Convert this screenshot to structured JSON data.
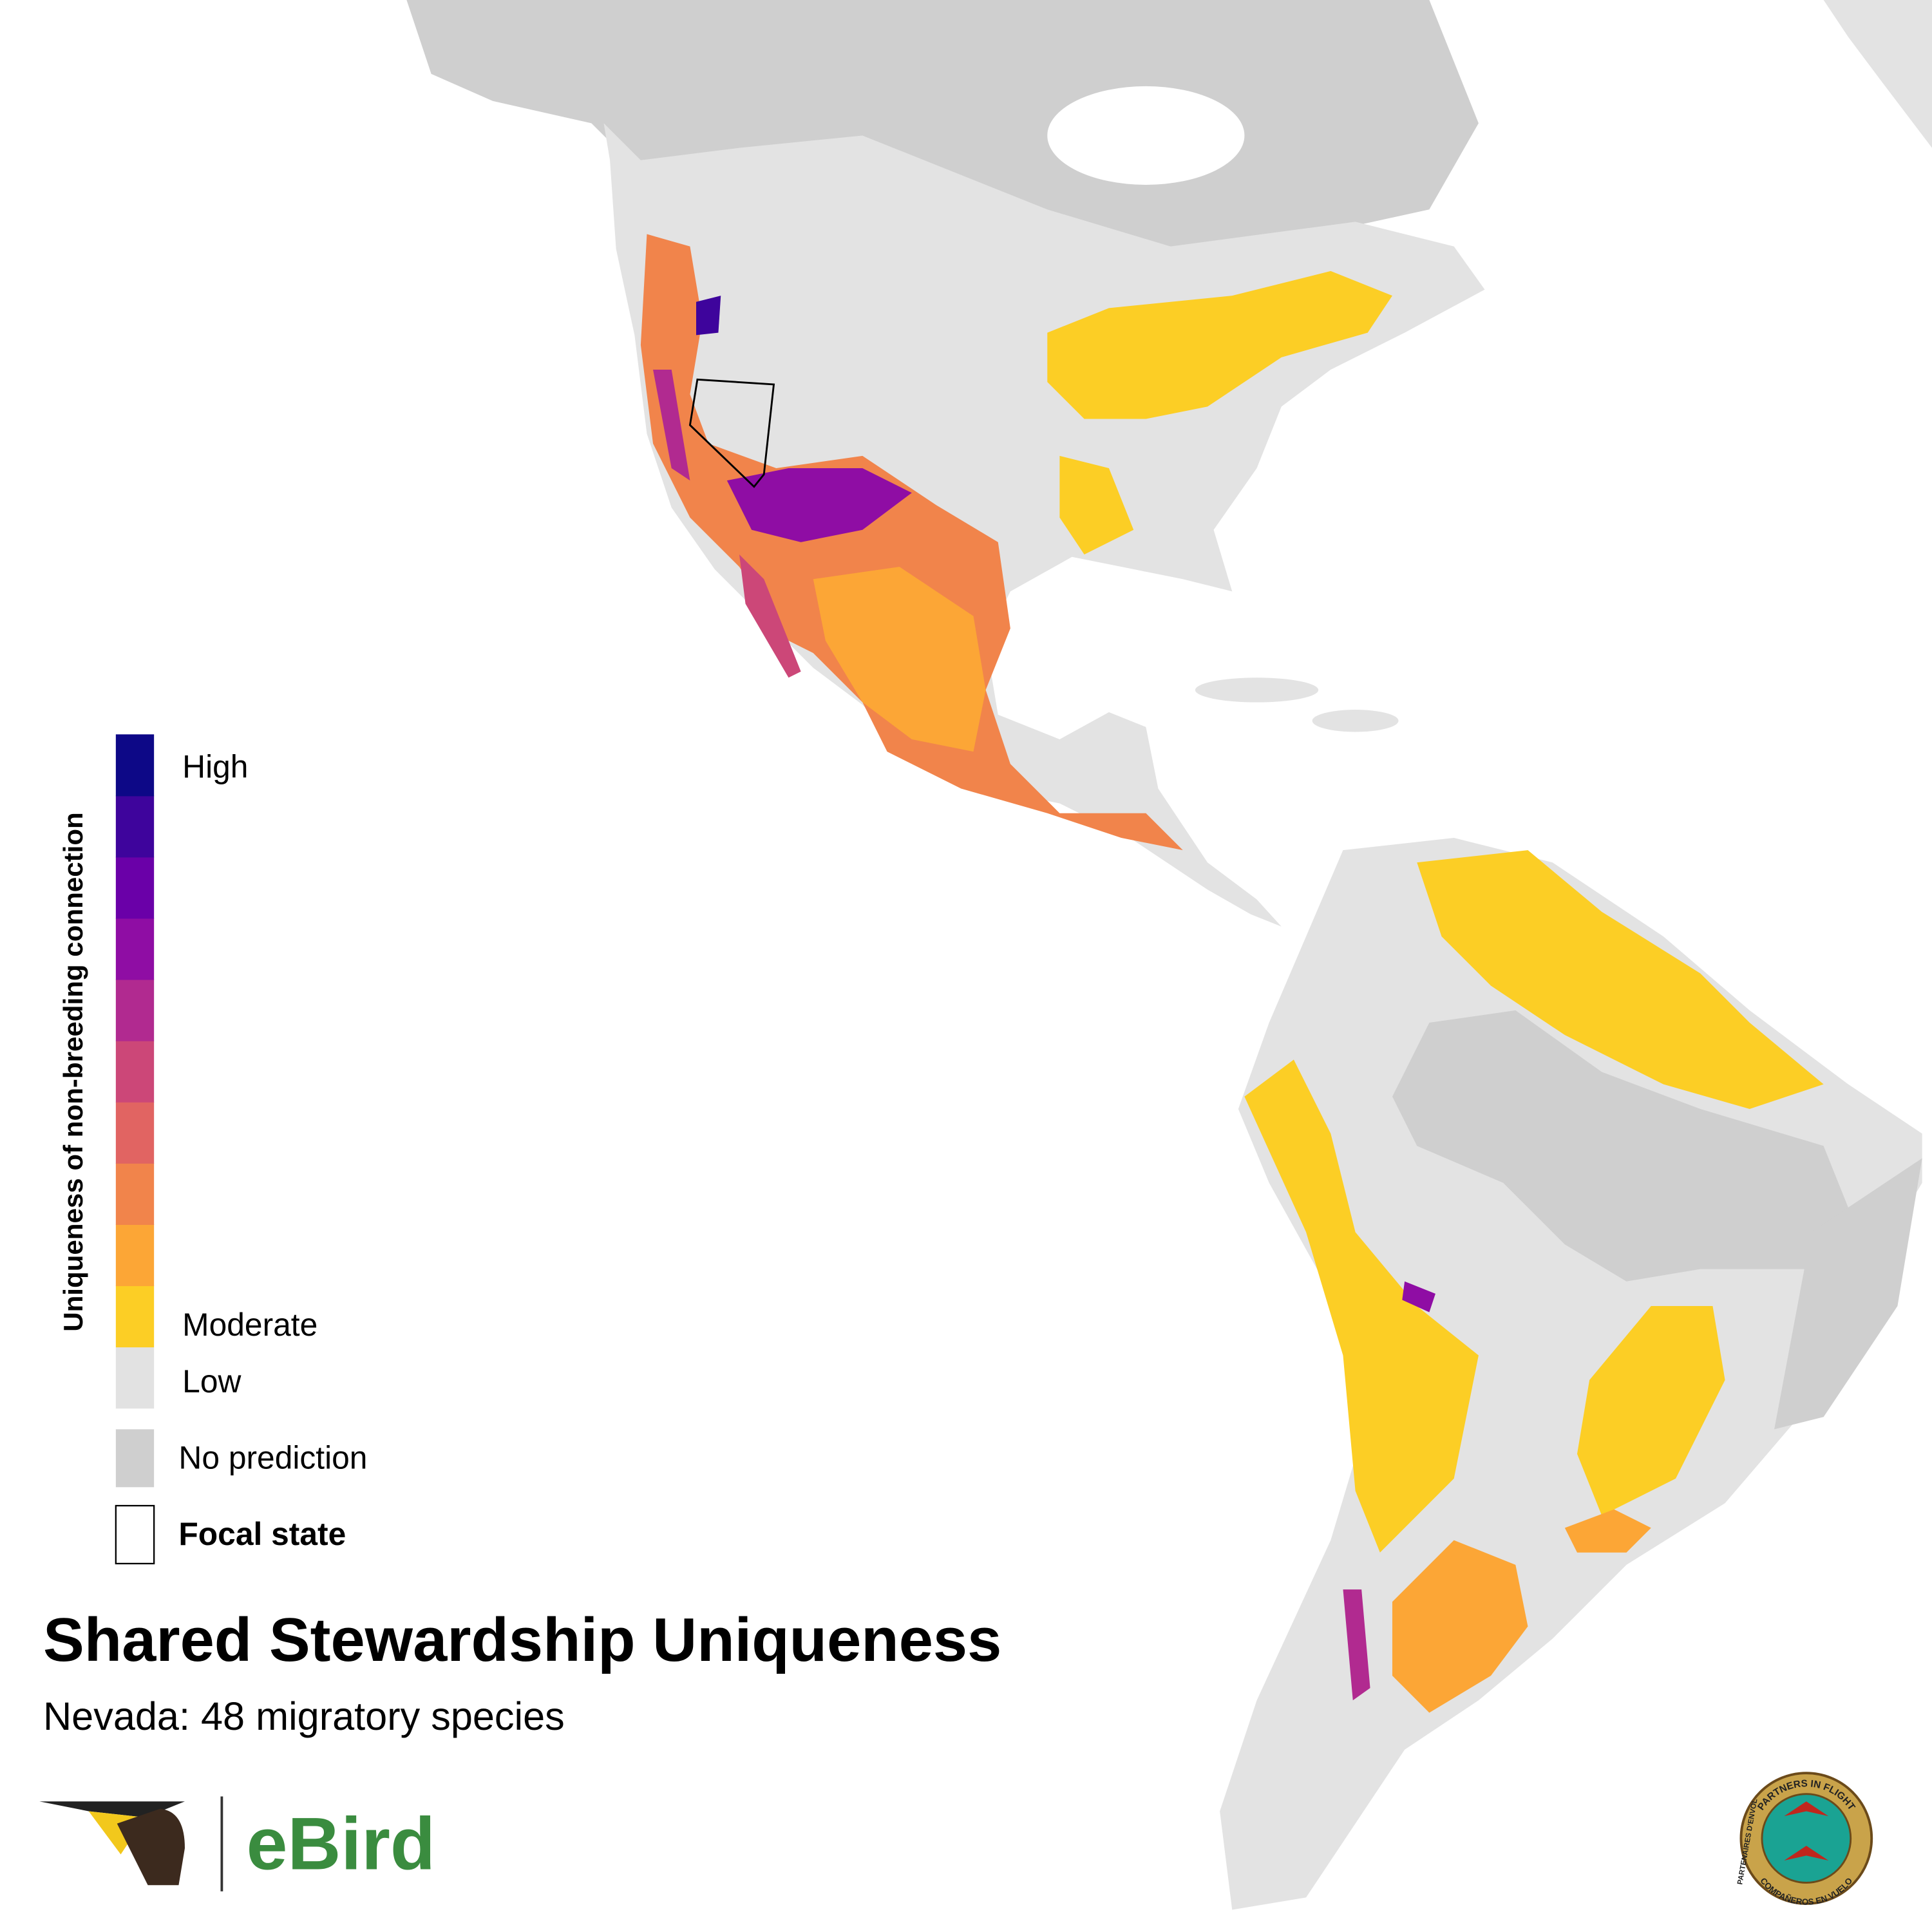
{
  "legend": {
    "title": "Uniqueness of non-breeding connection",
    "high": "High",
    "moderate": "Moderate",
    "low": "Low",
    "colors": [
      "#0d0887",
      "#3e049c",
      "#6a00a8",
      "#8f0da4",
      "#b12a90",
      "#cc4778",
      "#e16462",
      "#f1844b",
      "#fca636",
      "#fcce25",
      "#e2e2e2"
    ],
    "no_prediction": "No prediction",
    "focal_state": "Focal state"
  },
  "title": "Shared Stewardship Uniqueness",
  "subtitle": "Nevada: 48 migratory species",
  "logo": "eBird",
  "seal": {
    "top": "PARTNERS IN FLIGHT",
    "left": "PARTENAIRES D'ENVOL",
    "bottom": "COMPAÑEROS EN VUELO"
  }
}
